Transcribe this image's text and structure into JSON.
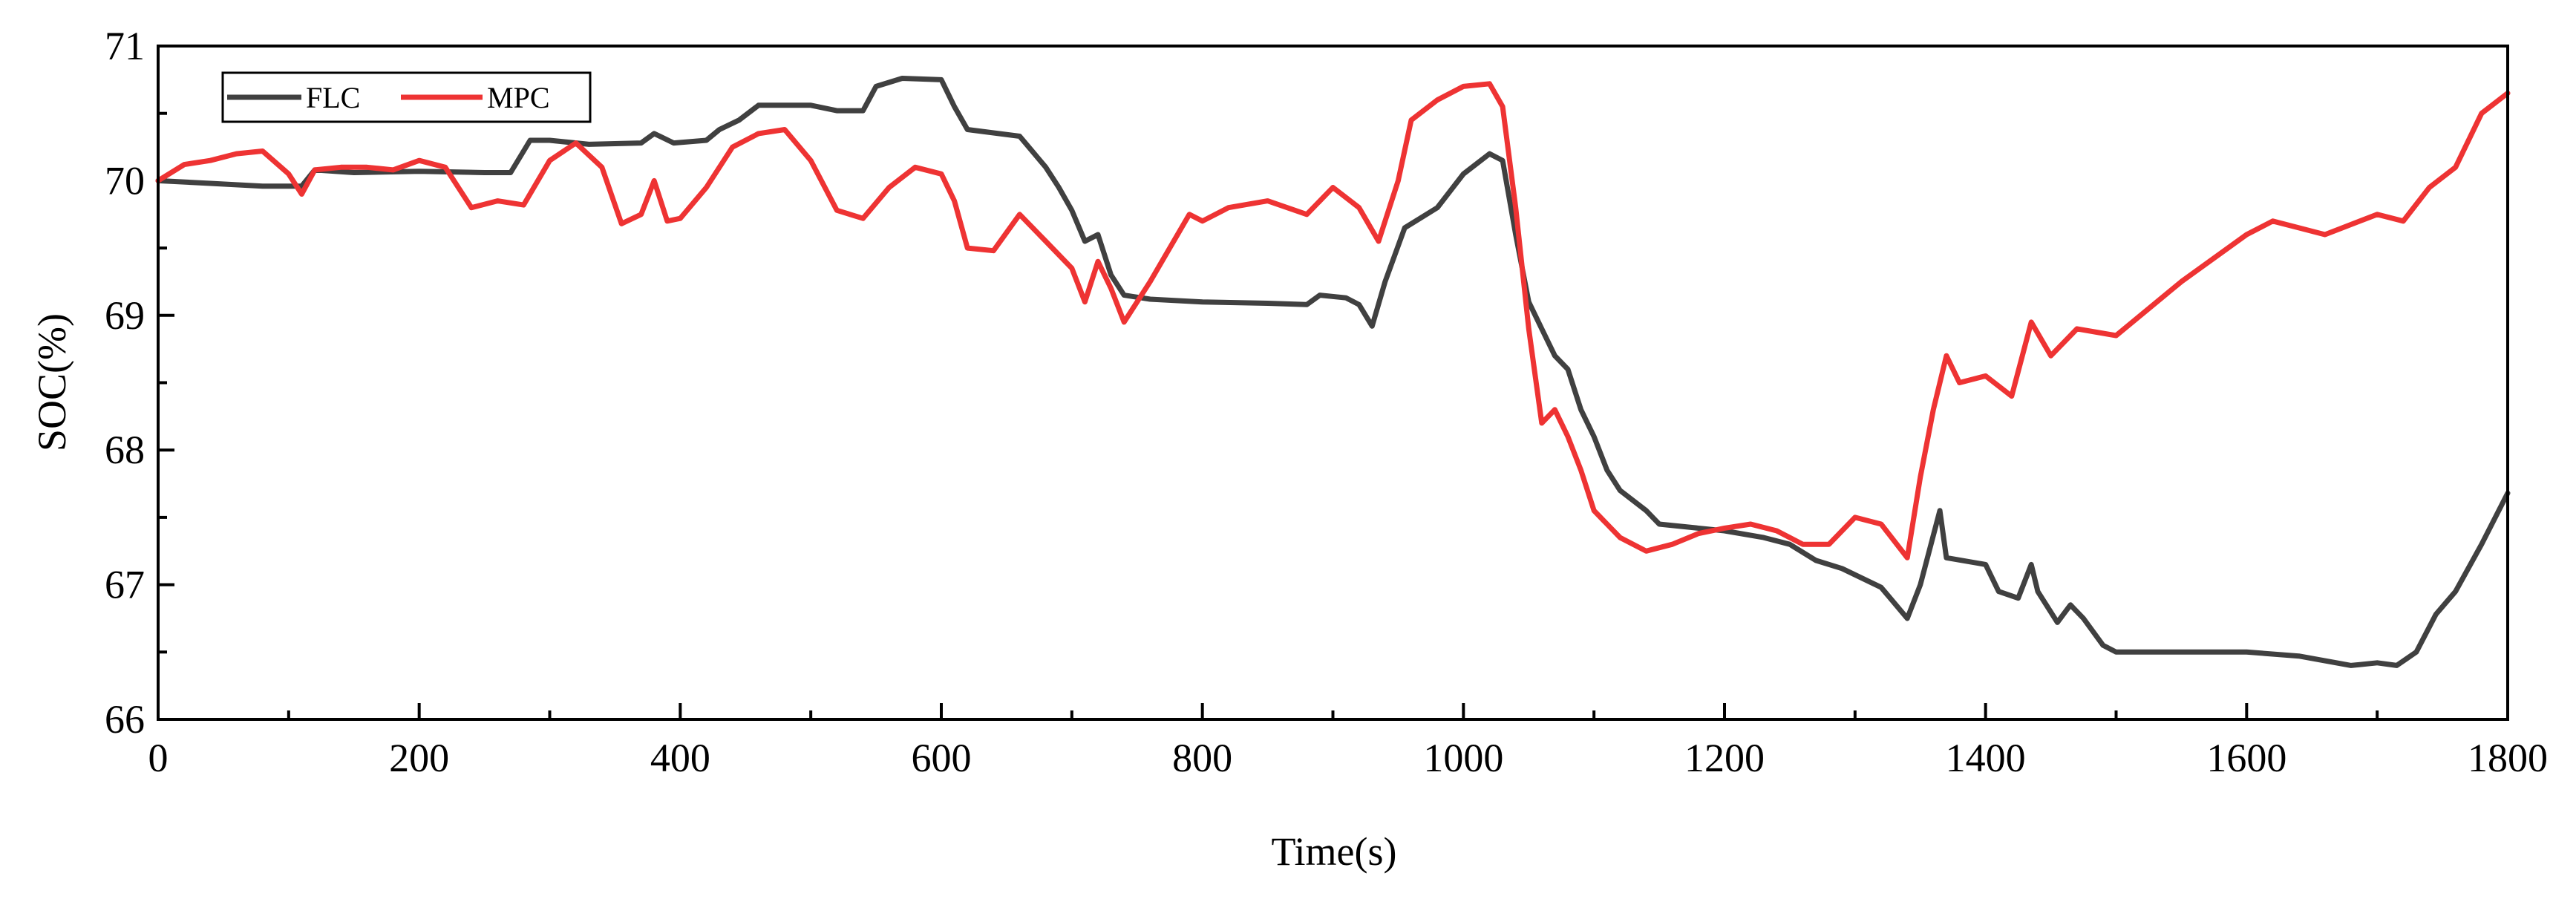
{
  "chart_data": {
    "type": "line",
    "title": "",
    "xlabel": "Time(s)",
    "ylabel": "SOC(%)",
    "xlim": [
      0,
      1800
    ],
    "ylim": [
      66,
      71
    ],
    "xticks": [
      0,
      200,
      400,
      600,
      800,
      1000,
      1200,
      1400,
      1600,
      1800
    ],
    "yticks": [
      66,
      67,
      68,
      69,
      70,
      71
    ],
    "grid": false,
    "legend_position": "top-left",
    "series": [
      {
        "name": "FLC",
        "color": "#404040",
        "x": [
          0,
          40,
          80,
          110,
          120,
          150,
          200,
          250,
          270,
          285,
          300,
          330,
          370,
          380,
          395,
          420,
          430,
          445,
          460,
          500,
          520,
          540,
          550,
          570,
          600,
          610,
          620,
          660,
          680,
          690,
          700,
          710,
          720,
          730,
          740,
          760,
          800,
          850,
          880,
          890,
          910,
          920,
          930,
          940,
          955,
          980,
          1000,
          1020,
          1030,
          1040,
          1050,
          1060,
          1070,
          1080,
          1090,
          1100,
          1110,
          1120,
          1140,
          1150,
          1200,
          1230,
          1250,
          1270,
          1290,
          1320,
          1340,
          1350,
          1365,
          1370,
          1400,
          1410,
          1425,
          1435,
          1440,
          1455,
          1465,
          1475,
          1490,
          1500,
          1600,
          1640,
          1680,
          1700,
          1715,
          1730,
          1745,
          1760,
          1780,
          1800
        ],
        "values": [
          70.0,
          69.98,
          69.96,
          69.96,
          70.08,
          70.06,
          70.07,
          70.06,
          70.06,
          70.3,
          70.3,
          70.27,
          70.28,
          70.35,
          70.28,
          70.3,
          70.38,
          70.45,
          70.56,
          70.56,
          70.52,
          70.52,
          70.7,
          70.76,
          70.75,
          70.55,
          70.38,
          70.33,
          70.1,
          69.95,
          69.78,
          69.55,
          69.6,
          69.3,
          69.15,
          69.12,
          69.1,
          69.09,
          69.08,
          69.15,
          69.13,
          69.08,
          68.92,
          69.25,
          69.65,
          69.8,
          70.05,
          70.2,
          70.15,
          69.6,
          69.1,
          68.9,
          68.7,
          68.6,
          68.3,
          68.1,
          67.85,
          67.7,
          67.55,
          67.45,
          67.4,
          67.35,
          67.3,
          67.18,
          67.12,
          66.98,
          66.75,
          67.0,
          67.55,
          67.2,
          67.15,
          66.95,
          66.9,
          67.15,
          66.95,
          66.72,
          66.85,
          66.75,
          66.55,
          66.5,
          66.5,
          66.47,
          66.4,
          66.42,
          66.4,
          66.5,
          66.78,
          66.95,
          67.3,
          67.68
        ]
      },
      {
        "name": "MPC",
        "color": "#ee3333",
        "x": [
          0,
          20,
          40,
          60,
          80,
          100,
          110,
          120,
          140,
          160,
          180,
          200,
          220,
          240,
          260,
          280,
          300,
          320,
          340,
          355,
          370,
          380,
          390,
          400,
          420,
          440,
          460,
          480,
          500,
          520,
          540,
          560,
          580,
          600,
          610,
          620,
          640,
          660,
          680,
          700,
          710,
          720,
          730,
          740,
          760,
          790,
          800,
          820,
          850,
          880,
          900,
          920,
          935,
          950,
          960,
          980,
          1000,
          1020,
          1030,
          1040,
          1050,
          1060,
          1070,
          1080,
          1090,
          1100,
          1110,
          1120,
          1140,
          1160,
          1180,
          1200,
          1220,
          1240,
          1260,
          1280,
          1300,
          1320,
          1340,
          1350,
          1360,
          1370,
          1380,
          1400,
          1420,
          1435,
          1450,
          1470,
          1500,
          1550,
          1600,
          1620,
          1640,
          1660,
          1700,
          1720,
          1740,
          1760,
          1780,
          1800
        ],
        "values": [
          70.0,
          70.12,
          70.15,
          70.2,
          70.22,
          70.05,
          69.9,
          70.08,
          70.1,
          70.1,
          70.08,
          70.15,
          70.1,
          69.8,
          69.85,
          69.82,
          70.15,
          70.28,
          70.1,
          69.68,
          69.75,
          70.0,
          69.7,
          69.72,
          69.95,
          70.25,
          70.35,
          70.38,
          70.15,
          69.78,
          69.72,
          69.95,
          70.1,
          70.05,
          69.85,
          69.5,
          69.48,
          69.75,
          69.55,
          69.35,
          69.1,
          69.4,
          69.2,
          68.95,
          69.25,
          69.75,
          69.7,
          69.8,
          69.85,
          69.75,
          69.95,
          69.8,
          69.55,
          70.0,
          70.45,
          70.6,
          70.7,
          70.72,
          70.55,
          69.8,
          68.9,
          68.2,
          68.3,
          68.1,
          67.85,
          67.55,
          67.45,
          67.35,
          67.25,
          67.3,
          67.38,
          67.42,
          67.45,
          67.4,
          67.3,
          67.3,
          67.5,
          67.45,
          67.2,
          67.8,
          68.3,
          68.7,
          68.5,
          68.55,
          68.4,
          68.95,
          68.7,
          68.9,
          68.85,
          69.25,
          69.6,
          69.7,
          69.65,
          69.6,
          69.75,
          69.7,
          69.95,
          70.1,
          70.5,
          70.65
        ]
      }
    ]
  }
}
